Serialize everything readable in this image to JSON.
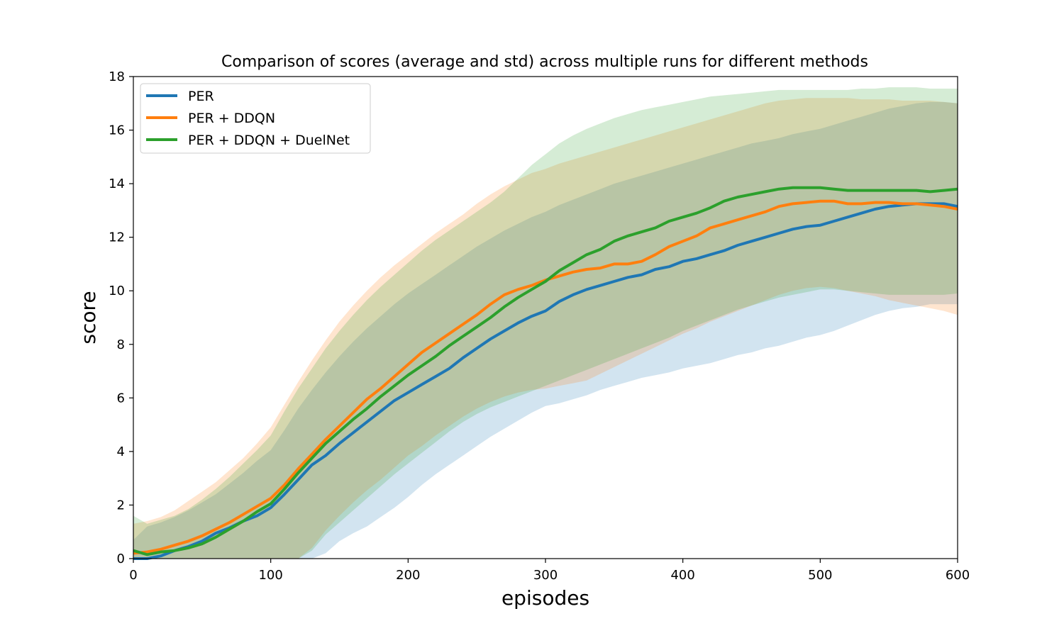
{
  "chart_data": {
    "type": "line",
    "title": "Comparison of scores (average and std) across multiple runs for different methods",
    "xlabel": "episodes",
    "ylabel": "score",
    "xlim": [
      0,
      600
    ],
    "ylim": [
      0,
      18
    ],
    "xticks": [
      0,
      100,
      200,
      300,
      400,
      500,
      600
    ],
    "yticks": [
      0,
      2,
      4,
      6,
      8,
      10,
      12,
      14,
      16,
      18
    ],
    "grid": false,
    "legend_position": "top-left",
    "series": [
      {
        "name": "PER",
        "color": "#1f77b4",
        "x": [
          0,
          10,
          20,
          30,
          40,
          50,
          60,
          70,
          80,
          90,
          100,
          110,
          120,
          130,
          140,
          150,
          160,
          170,
          180,
          190,
          200,
          210,
          220,
          230,
          240,
          250,
          260,
          270,
          280,
          290,
          300,
          310,
          320,
          330,
          340,
          350,
          360,
          370,
          380,
          390,
          400,
          410,
          420,
          430,
          440,
          450,
          460,
          470,
          480,
          490,
          500,
          510,
          520,
          530,
          540,
          550,
          560,
          570,
          580,
          590,
          600
        ],
        "mean": [
          0.0,
          0.0,
          0.1,
          0.3,
          0.45,
          0.65,
          0.95,
          1.15,
          1.4,
          1.6,
          1.9,
          2.4,
          2.95,
          3.5,
          3.85,
          4.3,
          4.7,
          5.1,
          5.5,
          5.9,
          6.2,
          6.5,
          6.8,
          7.1,
          7.5,
          7.85,
          8.2,
          8.5,
          8.8,
          9.05,
          9.25,
          9.6,
          9.85,
          10.05,
          10.2,
          10.35,
          10.5,
          10.6,
          10.8,
          10.9,
          11.1,
          11.2,
          11.35,
          11.5,
          11.7,
          11.85,
          12.0,
          12.15,
          12.3,
          12.4,
          12.45,
          12.6,
          12.75,
          12.9,
          13.05,
          13.15,
          13.2,
          13.25,
          13.25,
          13.25,
          13.15
        ],
        "std_lower": [
          0.0,
          0.0,
          0.0,
          0.0,
          0.0,
          0.0,
          0.0,
          0.0,
          0.0,
          0.0,
          0.0,
          0.0,
          0.0,
          0.0,
          0.2,
          0.65,
          0.95,
          1.2,
          1.55,
          1.9,
          2.3,
          2.75,
          3.15,
          3.5,
          3.85,
          4.2,
          4.55,
          4.85,
          5.15,
          5.45,
          5.7,
          5.8,
          5.95,
          6.1,
          6.3,
          6.45,
          6.6,
          6.75,
          6.85,
          6.95,
          7.1,
          7.2,
          7.3,
          7.45,
          7.6,
          7.7,
          7.85,
          7.95,
          8.1,
          8.25,
          8.35,
          8.5,
          8.7,
          8.9,
          9.1,
          9.25,
          9.35,
          9.4,
          9.5,
          9.5,
          9.5
        ],
        "std_upper": [
          0.7,
          1.2,
          1.35,
          1.55,
          1.8,
          2.1,
          2.4,
          2.8,
          3.2,
          3.65,
          4.05,
          4.8,
          5.6,
          6.3,
          6.95,
          7.55,
          8.1,
          8.6,
          9.05,
          9.5,
          9.9,
          10.25,
          10.6,
          10.95,
          11.3,
          11.65,
          11.95,
          12.25,
          12.5,
          12.75,
          12.95,
          13.2,
          13.4,
          13.6,
          13.8,
          14.0,
          14.15,
          14.3,
          14.45,
          14.6,
          14.75,
          14.9,
          15.05,
          15.2,
          15.35,
          15.5,
          15.6,
          15.7,
          15.85,
          15.95,
          16.05,
          16.2,
          16.35,
          16.5,
          16.65,
          16.8,
          16.9,
          17.0,
          17.05,
          17.05,
          17.0
        ]
      },
      {
        "name": "PER + DDQN",
        "color": "#ff7f0e",
        "x": [
          0,
          10,
          20,
          30,
          40,
          50,
          60,
          70,
          80,
          90,
          100,
          110,
          120,
          130,
          140,
          150,
          160,
          170,
          180,
          190,
          200,
          210,
          220,
          230,
          240,
          250,
          260,
          270,
          280,
          290,
          300,
          310,
          320,
          330,
          340,
          350,
          360,
          370,
          380,
          390,
          400,
          410,
          420,
          430,
          440,
          450,
          460,
          470,
          480,
          490,
          500,
          510,
          520,
          530,
          540,
          550,
          560,
          570,
          580,
          590,
          600
        ],
        "mean": [
          0.2,
          0.25,
          0.35,
          0.5,
          0.65,
          0.85,
          1.1,
          1.35,
          1.65,
          1.95,
          2.25,
          2.75,
          3.35,
          3.9,
          4.45,
          4.95,
          5.45,
          5.95,
          6.35,
          6.8,
          7.25,
          7.7,
          8.05,
          8.4,
          8.75,
          9.1,
          9.5,
          9.85,
          10.05,
          10.2,
          10.4,
          10.55,
          10.7,
          10.8,
          10.85,
          11.0,
          11.0,
          11.1,
          11.35,
          11.65,
          11.85,
          12.05,
          12.35,
          12.5,
          12.65,
          12.8,
          12.95,
          13.15,
          13.25,
          13.3,
          13.35,
          13.35,
          13.25,
          13.25,
          13.3,
          13.3,
          13.25,
          13.25,
          13.2,
          13.15,
          13.05
        ],
        "std_lower": [
          0.0,
          0.0,
          0.0,
          0.0,
          0.0,
          0.0,
          0.0,
          0.0,
          0.0,
          0.0,
          0.0,
          0.0,
          0.0,
          0.4,
          1.05,
          1.6,
          2.1,
          2.55,
          2.95,
          3.4,
          3.85,
          4.2,
          4.6,
          4.95,
          5.3,
          5.6,
          5.85,
          6.05,
          6.2,
          6.3,
          6.35,
          6.45,
          6.55,
          6.65,
          6.9,
          7.15,
          7.4,
          7.65,
          7.9,
          8.15,
          8.4,
          8.6,
          8.85,
          9.05,
          9.25,
          9.45,
          9.65,
          9.85,
          10.0,
          10.1,
          10.15,
          10.1,
          10.0,
          9.9,
          9.8,
          9.65,
          9.55,
          9.45,
          9.35,
          9.25,
          9.1
        ],
        "std_upper": [
          1.3,
          1.4,
          1.55,
          1.8,
          2.15,
          2.5,
          2.85,
          3.3,
          3.75,
          4.3,
          4.9,
          5.75,
          6.6,
          7.4,
          8.15,
          8.85,
          9.45,
          10.0,
          10.5,
          10.95,
          11.35,
          11.75,
          12.15,
          12.5,
          12.85,
          13.25,
          13.6,
          13.9,
          14.15,
          14.4,
          14.55,
          14.75,
          14.9,
          15.05,
          15.2,
          15.35,
          15.5,
          15.65,
          15.8,
          15.95,
          16.1,
          16.25,
          16.4,
          16.55,
          16.7,
          16.85,
          17.0,
          17.1,
          17.15,
          17.2,
          17.2,
          17.2,
          17.2,
          17.15,
          17.15,
          17.15,
          17.1,
          17.1,
          17.1,
          17.05,
          17.0
        ]
      },
      {
        "name": "PER + DDQN + DuelNet",
        "color": "#2ca02c",
        "x": [
          0,
          10,
          20,
          30,
          40,
          50,
          60,
          70,
          80,
          90,
          100,
          110,
          120,
          130,
          140,
          150,
          160,
          170,
          180,
          190,
          200,
          210,
          220,
          230,
          240,
          250,
          260,
          270,
          280,
          290,
          300,
          310,
          320,
          330,
          340,
          350,
          360,
          370,
          380,
          390,
          400,
          410,
          420,
          430,
          440,
          450,
          460,
          470,
          480,
          490,
          500,
          510,
          520,
          530,
          540,
          550,
          560,
          570,
          580,
          590,
          600
        ],
        "mean": [
          0.3,
          0.15,
          0.25,
          0.3,
          0.4,
          0.55,
          0.8,
          1.1,
          1.4,
          1.75,
          2.05,
          2.6,
          3.2,
          3.75,
          4.3,
          4.75,
          5.2,
          5.6,
          6.05,
          6.45,
          6.85,
          7.2,
          7.55,
          7.95,
          8.3,
          8.65,
          9.0,
          9.4,
          9.75,
          10.05,
          10.35,
          10.75,
          11.05,
          11.35,
          11.55,
          11.85,
          12.05,
          12.2,
          12.35,
          12.6,
          12.75,
          12.9,
          13.1,
          13.35,
          13.5,
          13.6,
          13.7,
          13.8,
          13.85,
          13.85,
          13.85,
          13.8,
          13.75,
          13.75,
          13.75,
          13.75,
          13.75,
          13.75,
          13.7,
          13.75,
          13.8
        ],
        "std_lower": [
          0.0,
          0.0,
          0.0,
          0.0,
          0.0,
          0.0,
          0.0,
          0.0,
          0.0,
          0.0,
          0.0,
          0.0,
          0.0,
          0.3,
          0.9,
          1.35,
          1.8,
          2.25,
          2.7,
          3.15,
          3.55,
          3.95,
          4.35,
          4.75,
          5.1,
          5.4,
          5.65,
          5.85,
          6.05,
          6.25,
          6.45,
          6.65,
          6.85,
          7.05,
          7.25,
          7.45,
          7.65,
          7.85,
          8.05,
          8.25,
          8.5,
          8.7,
          8.9,
          9.1,
          9.3,
          9.45,
          9.6,
          9.75,
          9.85,
          9.95,
          10.05,
          10.05,
          10.0,
          9.95,
          9.9,
          9.85,
          9.85,
          9.85,
          9.85,
          9.85,
          9.9
        ],
        "std_upper": [
          1.6,
          1.3,
          1.45,
          1.6,
          1.85,
          2.2,
          2.6,
          3.05,
          3.55,
          4.05,
          4.6,
          5.5,
          6.35,
          7.1,
          7.85,
          8.5,
          9.1,
          9.65,
          10.15,
          10.6,
          11.05,
          11.5,
          11.9,
          12.25,
          12.6,
          12.95,
          13.3,
          13.7,
          14.2,
          14.7,
          15.1,
          15.5,
          15.8,
          16.05,
          16.25,
          16.45,
          16.6,
          16.75,
          16.85,
          16.95,
          17.05,
          17.15,
          17.25,
          17.3,
          17.35,
          17.4,
          17.45,
          17.5,
          17.5,
          17.5,
          17.5,
          17.5,
          17.5,
          17.55,
          17.55,
          17.6,
          17.6,
          17.6,
          17.55,
          17.55,
          17.55
        ]
      }
    ]
  }
}
